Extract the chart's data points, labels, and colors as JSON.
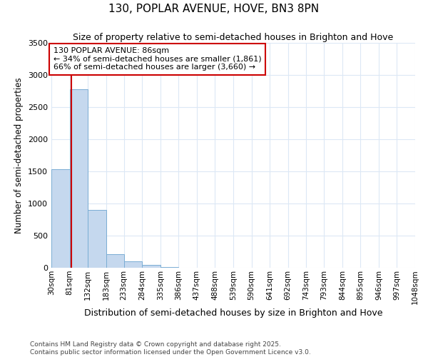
{
  "title": "130, POPLAR AVENUE, HOVE, BN3 8PN",
  "subtitle": "Size of property relative to semi-detached houses in Brighton and Hove",
  "xlabel": "Distribution of semi-detached houses by size in Brighton and Hove",
  "ylabel": "Number of semi-detached properties",
  "footer_line1": "Contains HM Land Registry data © Crown copyright and database right 2025.",
  "footer_line2": "Contains public sector information licensed under the Open Government Licence v3.0.",
  "annotation_line1": "130 POPLAR AVENUE: 86sqm",
  "annotation_line2": "← 34% of semi-detached houses are smaller (1,861)",
  "annotation_line3": "66% of semi-detached houses are larger (3,660) →",
  "property_size_sqm": 86,
  "bar_color": "#c5d8ee",
  "bar_edge_color": "#7aadd4",
  "line_color": "#cc0000",
  "background_color": "#ffffff",
  "grid_color": "#dce8f5",
  "bin_edges": [
    30,
    81,
    132,
    183,
    233,
    284,
    335,
    386,
    437,
    488,
    539,
    590,
    641,
    692,
    743,
    793,
    844,
    895,
    946,
    997,
    1048
  ],
  "bin_labels": [
    "30sqm",
    "81sqm",
    "132sqm",
    "183sqm",
    "233sqm",
    "284sqm",
    "335sqm",
    "386sqm",
    "437sqm",
    "488sqm",
    "539sqm",
    "590sqm",
    "641sqm",
    "692sqm",
    "743sqm",
    "793sqm",
    "844sqm",
    "895sqm",
    "946sqm",
    "997sqm",
    "1048sqm"
  ],
  "bar_heights": [
    1530,
    2780,
    900,
    210,
    100,
    40,
    10,
    0,
    0,
    0,
    0,
    0,
    0,
    0,
    0,
    0,
    0,
    0,
    0,
    0
  ],
  "ylim": [
    0,
    3500
  ],
  "yticks": [
    0,
    500,
    1000,
    1500,
    2000,
    2500,
    3000,
    3500
  ]
}
